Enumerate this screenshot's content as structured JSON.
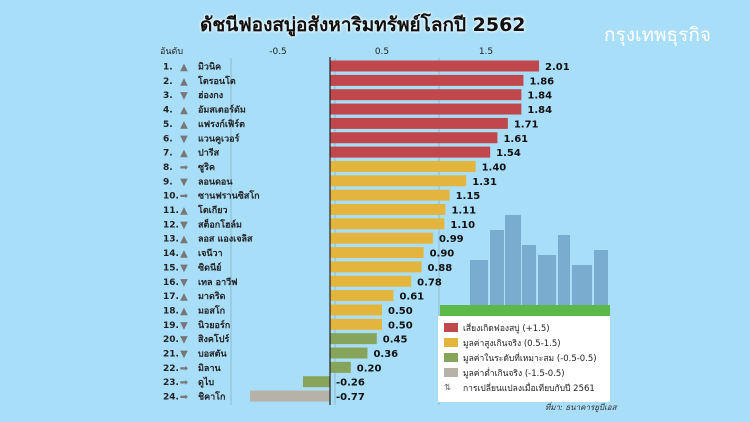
{
  "chart_data": {
    "type": "bar",
    "orientation": "horizontal",
    "title": "ดัชนีฟองสบู่อสังหาริมทรัพย์โลกปี 2562",
    "rank_header": "อันดับ",
    "xticks": [
      -0.5,
      0.5,
      1.5
    ],
    "xlim": [
      -0.77,
      2.01
    ],
    "categories": [
      "มิวนิค",
      "โตรอนโต",
      "ฮ่องกง",
      "อัมสเตอร์ดัม",
      "แฟรงก์เฟิร์ต",
      "แวนคูเวอร์",
      "ปารีส",
      "ซูริค",
      "ลอนดอน",
      "ซานฟรานซิสโก",
      "โตเกียว",
      "สต็อกโฮล์ม",
      "ลอส แองเจลิส",
      "เจนีวา",
      "ซิดนีย์",
      "เทล อาวีฟ",
      "มาดริด",
      "มอสโก",
      "นิวยอร์ก",
      "สิงคโปร์",
      "บอสตัน",
      "มิลาน",
      "ดูไบ",
      "ชิคาโก"
    ],
    "values": [
      2.01,
      1.86,
      1.84,
      1.84,
      1.71,
      1.61,
      1.54,
      1.4,
      1.31,
      1.15,
      1.11,
      1.1,
      0.99,
      0.9,
      0.88,
      0.78,
      0.61,
      0.5,
      0.5,
      0.45,
      0.36,
      0.2,
      -0.26,
      -0.77
    ],
    "change_vs_2561": [
      "up",
      "up",
      "down",
      "up",
      "up",
      "down",
      "up",
      "same",
      "down",
      "same",
      "up",
      "down",
      "up",
      "up",
      "down",
      "down",
      "up",
      "up",
      "down",
      "down",
      "down",
      "same",
      "same",
      "same"
    ],
    "legend": [
      {
        "label": "เสี่ยงเกิดฟองสบู่ (+1.5)",
        "color": "#c0474b"
      },
      {
        "label": "มูลค่าสูงเกินจริง (0.5-1.5)",
        "color": "#e3b53c"
      },
      {
        "label": "มูลค่าในระดับที่เหมาะสม (-0.5-0.5)",
        "color": "#87a55a"
      },
      {
        "label": "มูลค่าต่ำเกินจริง (-1.5-0.5)",
        "color": "#b7b2a8"
      }
    ],
    "change_legend": "การเปลี่ยนแปลงเมื่อเทียบกับปี 2561",
    "source": "ที่มา: ธนาคารยูบีเอส"
  },
  "brand": "กรุงเทพธุรกิจ"
}
